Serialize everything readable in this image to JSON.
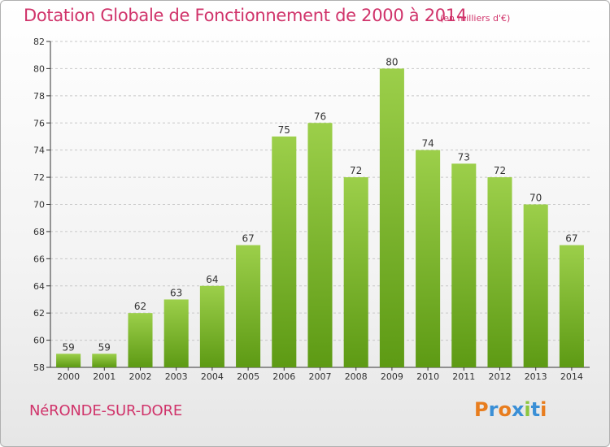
{
  "header": {
    "title": "Dotation Globale de Fonctionnement de 2000 à 2014",
    "unit": "(en milliers d'€)"
  },
  "footer": {
    "commune": "NéRONDE-SUR-DORE",
    "logo": "Proxiti"
  },
  "colors": {
    "title": "#d0336a",
    "bar_light": "#9ccf4a",
    "bar_dark": "#5d9a14",
    "axis": "#333333",
    "grid": "#c8c8c8"
  },
  "chart_data": {
    "type": "bar",
    "title": "Dotation Globale de Fonctionnement de 2000 à 2014",
    "subtitle": "(en milliers d'€)",
    "xlabel": "",
    "ylabel": "",
    "categories": [
      "2000",
      "2001",
      "2002",
      "2003",
      "2004",
      "2005",
      "2006",
      "2007",
      "2008",
      "2009",
      "2010",
      "2011",
      "2012",
      "2013",
      "2014"
    ],
    "values": [
      59,
      59,
      62,
      63,
      64,
      67,
      75,
      76,
      72,
      80,
      74,
      73,
      72,
      70,
      67
    ],
    "ylim": [
      58,
      82
    ],
    "yticks": [
      58,
      60,
      62,
      64,
      66,
      68,
      70,
      72,
      74,
      76,
      78,
      80,
      82
    ],
    "grid": true,
    "grid_style": "dashed horizontal"
  }
}
